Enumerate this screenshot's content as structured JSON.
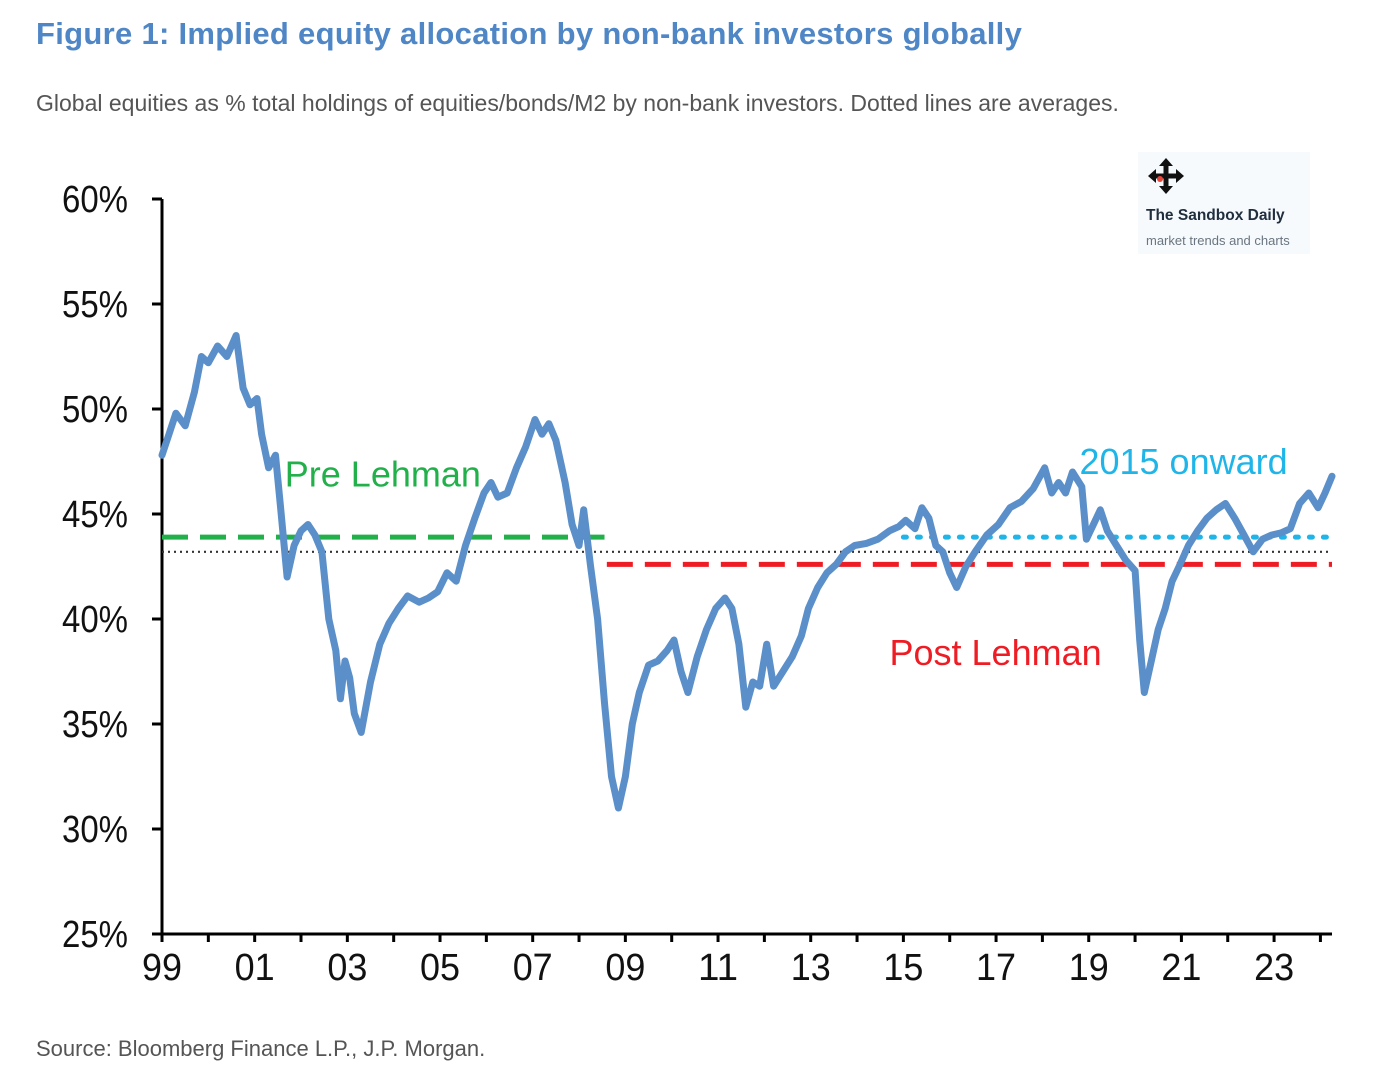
{
  "header": {
    "title": "Figure 1: Implied equity allocation by non-bank investors globally",
    "subtitle": "Global equities as % total holdings of equities/bonds/M2 by non-bank investors. Dotted lines are averages."
  },
  "footer": {
    "source": "Source: Bloomberg Finance L.P., J.P. Morgan."
  },
  "watermark": {
    "name": "The Sandbox Daily",
    "tagline": "market trends and charts",
    "icon": "move-arrows-icon"
  },
  "colors": {
    "title": "#4f86c6",
    "series": "#5b8fc9",
    "pre_lehman": "#22b04b",
    "post_lehman": "#ee1c24",
    "onward_2015": "#1fb5e9",
    "overall_avg": "#333333"
  },
  "chart_data": {
    "type": "line",
    "title": "",
    "xlabel": "",
    "ylabel": "",
    "xlim": [
      1999,
      2024.25
    ],
    "ylim": [
      25,
      60
    ],
    "y_ticks": [
      25,
      30,
      35,
      40,
      45,
      50,
      55,
      60
    ],
    "y_tick_labels": [
      "25%",
      "30%",
      "35%",
      "40%",
      "45%",
      "50%",
      "55%",
      "60%"
    ],
    "x_ticks": [
      1999,
      2001,
      2003,
      2005,
      2007,
      2009,
      2011,
      2013,
      2015,
      2017,
      2019,
      2021,
      2023
    ],
    "x_tick_labels": [
      "99",
      "01",
      "03",
      "05",
      "07",
      "09",
      "11",
      "13",
      "15",
      "17",
      "19",
      "21",
      "23"
    ],
    "grid": false,
    "legend": "none",
    "series": [
      {
        "values": [
          [
            1999.0,
            47.8
          ],
          [
            1999.15,
            48.8
          ],
          [
            1999.3,
            49.8
          ],
          [
            1999.5,
            49.2
          ],
          [
            1999.7,
            50.8
          ],
          [
            1999.85,
            52.5
          ],
          [
            2000.0,
            52.2
          ],
          [
            2000.2,
            53.0
          ],
          [
            2000.4,
            52.5
          ],
          [
            2000.6,
            53.5
          ],
          [
            2000.75,
            51.0
          ],
          [
            2000.9,
            50.2
          ],
          [
            2001.05,
            50.5
          ],
          [
            2001.15,
            48.8
          ],
          [
            2001.3,
            47.2
          ],
          [
            2001.45,
            47.8
          ],
          [
            2001.55,
            45.5
          ],
          [
            2001.7,
            42.0
          ],
          [
            2001.85,
            43.5
          ],
          [
            2002.0,
            44.2
          ],
          [
            2002.15,
            44.5
          ],
          [
            2002.3,
            44.0
          ],
          [
            2002.45,
            43.2
          ],
          [
            2002.6,
            40.0
          ],
          [
            2002.75,
            38.5
          ],
          [
            2002.85,
            36.2
          ],
          [
            2002.95,
            38.0
          ],
          [
            2003.05,
            37.2
          ],
          [
            2003.15,
            35.5
          ],
          [
            2003.3,
            34.6
          ],
          [
            2003.5,
            37.0
          ],
          [
            2003.7,
            38.8
          ],
          [
            2003.9,
            39.8
          ],
          [
            2004.1,
            40.5
          ],
          [
            2004.3,
            41.1
          ],
          [
            2004.55,
            40.8
          ],
          [
            2004.75,
            41.0
          ],
          [
            2004.95,
            41.3
          ],
          [
            2005.15,
            42.2
          ],
          [
            2005.35,
            41.8
          ],
          [
            2005.55,
            43.5
          ],
          [
            2005.75,
            44.8
          ],
          [
            2005.95,
            46.0
          ],
          [
            2006.1,
            46.5
          ],
          [
            2006.25,
            45.8
          ],
          [
            2006.45,
            46.0
          ],
          [
            2006.65,
            47.2
          ],
          [
            2006.85,
            48.2
          ],
          [
            2007.05,
            49.5
          ],
          [
            2007.2,
            48.8
          ],
          [
            2007.35,
            49.3
          ],
          [
            2007.5,
            48.5
          ],
          [
            2007.7,
            46.5
          ],
          [
            2007.85,
            44.5
          ],
          [
            2008.0,
            43.5
          ],
          [
            2008.1,
            45.2
          ],
          [
            2008.25,
            42.5
          ],
          [
            2008.4,
            40.0
          ],
          [
            2008.55,
            36.0
          ],
          [
            2008.7,
            32.5
          ],
          [
            2008.85,
            31.0
          ],
          [
            2009.0,
            32.5
          ],
          [
            2009.15,
            35.0
          ],
          [
            2009.3,
            36.5
          ],
          [
            2009.5,
            37.8
          ],
          [
            2009.7,
            38.0
          ],
          [
            2009.9,
            38.5
          ],
          [
            2010.05,
            39.0
          ],
          [
            2010.2,
            37.5
          ],
          [
            2010.35,
            36.5
          ],
          [
            2010.55,
            38.2
          ],
          [
            2010.75,
            39.5
          ],
          [
            2010.95,
            40.5
          ],
          [
            2011.15,
            41.0
          ],
          [
            2011.3,
            40.5
          ],
          [
            2011.45,
            38.8
          ],
          [
            2011.6,
            35.8
          ],
          [
            2011.75,
            37.0
          ],
          [
            2011.9,
            36.8
          ],
          [
            2012.05,
            38.8
          ],
          [
            2012.2,
            36.8
          ],
          [
            2012.4,
            37.5
          ],
          [
            2012.6,
            38.2
          ],
          [
            2012.8,
            39.2
          ],
          [
            2012.95,
            40.5
          ],
          [
            2013.15,
            41.5
          ],
          [
            2013.35,
            42.2
          ],
          [
            2013.55,
            42.6
          ],
          [
            2013.75,
            43.2
          ],
          [
            2013.95,
            43.5
          ],
          [
            2014.2,
            43.6
          ],
          [
            2014.45,
            43.8
          ],
          [
            2014.7,
            44.2
          ],
          [
            2014.9,
            44.4
          ],
          [
            2015.05,
            44.7
          ],
          [
            2015.25,
            44.3
          ],
          [
            2015.4,
            45.3
          ],
          [
            2015.55,
            44.8
          ],
          [
            2015.7,
            43.5
          ],
          [
            2015.85,
            43.2
          ],
          [
            2016.0,
            42.2
          ],
          [
            2016.15,
            41.5
          ],
          [
            2016.35,
            42.5
          ],
          [
            2016.55,
            43.2
          ],
          [
            2016.8,
            44.0
          ],
          [
            2017.05,
            44.5
          ],
          [
            2017.3,
            45.3
          ],
          [
            2017.55,
            45.6
          ],
          [
            2017.8,
            46.2
          ],
          [
            2018.05,
            47.2
          ],
          [
            2018.2,
            46.0
          ],
          [
            2018.35,
            46.5
          ],
          [
            2018.5,
            46.0
          ],
          [
            2018.65,
            47.0
          ],
          [
            2018.85,
            46.3
          ],
          [
            2018.95,
            43.8
          ],
          [
            2019.1,
            44.5
          ],
          [
            2019.25,
            45.2
          ],
          [
            2019.4,
            44.2
          ],
          [
            2019.6,
            43.5
          ],
          [
            2019.8,
            42.8
          ],
          [
            2020.0,
            42.3
          ],
          [
            2020.1,
            39.0
          ],
          [
            2020.2,
            36.5
          ],
          [
            2020.35,
            38.0
          ],
          [
            2020.5,
            39.5
          ],
          [
            2020.65,
            40.5
          ],
          [
            2020.8,
            41.8
          ],
          [
            2020.95,
            42.5
          ],
          [
            2021.15,
            43.5
          ],
          [
            2021.35,
            44.2
          ],
          [
            2021.55,
            44.8
          ],
          [
            2021.75,
            45.2
          ],
          [
            2021.95,
            45.5
          ],
          [
            2022.15,
            44.8
          ],
          [
            2022.35,
            44.0
          ],
          [
            2022.55,
            43.2
          ],
          [
            2022.75,
            43.8
          ],
          [
            2022.95,
            44.0
          ],
          [
            2023.15,
            44.1
          ],
          [
            2023.35,
            44.3
          ],
          [
            2023.55,
            45.5
          ],
          [
            2023.75,
            46.0
          ],
          [
            2023.95,
            45.3
          ],
          [
            2024.1,
            46.0
          ],
          [
            2024.25,
            46.8
          ]
        ]
      }
    ],
    "reference_lines": [
      {
        "label": "Pre Lehman",
        "value": 43.9,
        "x_start": 1999.0,
        "x_end": 2008.55,
        "style": "dashed",
        "color_key": "pre_lehman"
      },
      {
        "label": "Post Lehman",
        "value": 42.6,
        "x_start": 2008.6,
        "x_end": 2024.25,
        "style": "dashed",
        "color_key": "post_lehman"
      },
      {
        "label": "2015 onward",
        "value": 43.9,
        "x_start": 2015.0,
        "x_end": 2024.25,
        "style": "dotted",
        "color_key": "onward_2015"
      },
      {
        "label": "",
        "value": 43.2,
        "x_start": 1999.0,
        "x_end": 2024.25,
        "style": "fine-dotted",
        "color_key": "overall_avg"
      }
    ],
    "annotations": [
      {
        "text": "Pre Lehman",
        "x": 2001.65,
        "y": 46.3,
        "color_key": "pre_lehman"
      },
      {
        "text": "Post Lehman",
        "x": 2014.7,
        "y": 37.8,
        "color_key": "post_lehman"
      },
      {
        "text": "2015 onward",
        "x": 2018.8,
        "y": 46.9,
        "color_key": "onward_2015"
      }
    ]
  }
}
